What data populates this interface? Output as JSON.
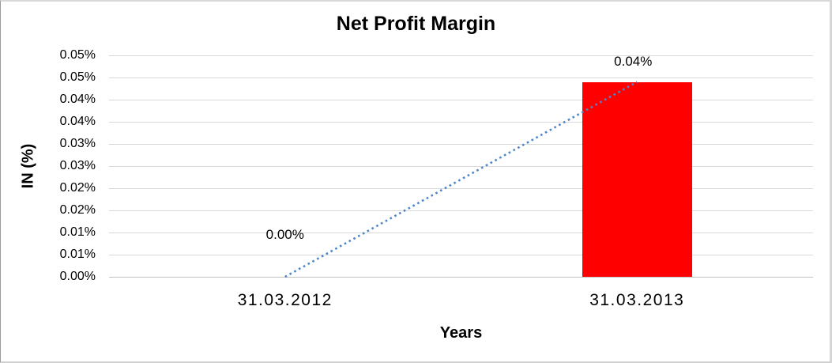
{
  "chart_data": {
    "type": "bar",
    "title": "Net Profit Margin",
    "legend": "none",
    "grid": true,
    "background": "#ffffff",
    "gridline_color": "#d9d9d9",
    "x_axis": {
      "title": "Years",
      "categories": [
        "31.03.2012",
        "31.03.2013"
      ]
    },
    "y_axis": {
      "title": "IN (%)",
      "min": 0,
      "max": 0.05,
      "step": 0.005,
      "tick_labels": [
        "0.05%",
        "0.05%",
        "0.04%",
        "0.04%",
        "0.03%",
        "0.03%",
        "0.02%",
        "0.02%",
        "0.01%",
        "0.01%",
        "0.00%"
      ]
    },
    "series": [
      {
        "name": "Net Profit Margin (column)",
        "type": "column",
        "color": "#ff0000",
        "values": [
          0,
          0.044
        ]
      },
      {
        "name": "Net Profit Margin (dotted trend line)",
        "type": "dotted_line",
        "color": "#4e86c8",
        "values": [
          0,
          0.044
        ]
      }
    ],
    "data_labels": [
      "0.00%",
      "0.04%"
    ]
  }
}
